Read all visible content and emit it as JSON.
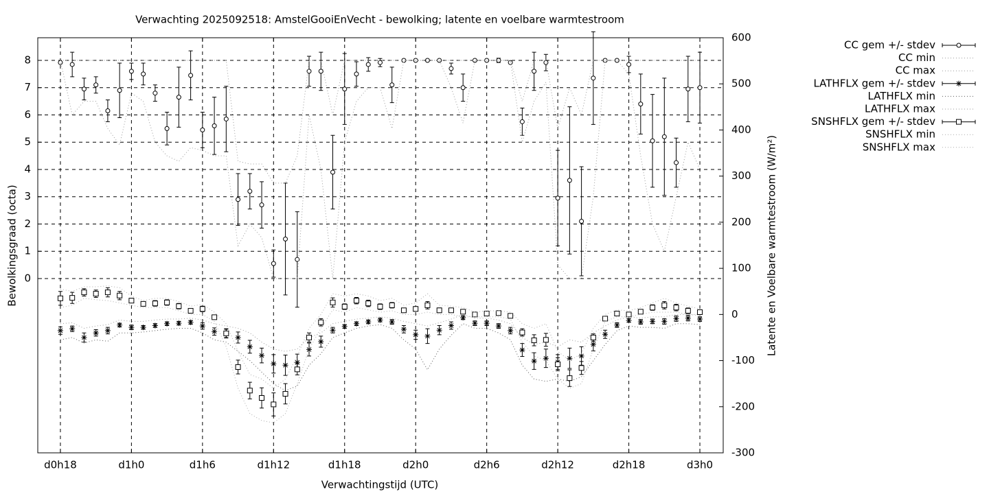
{
  "chart_data": {
    "type": "errorbar",
    "title": "Verwachting 2025092518: AmstelGooiEnVecht - bewolking; latente en voelbare warmtestroom",
    "xlabel": "Verwachtingstijd (UTC)",
    "ylabel": "Bewolkingsgraad (octa)",
    "y2label": "Latente en Voelbare warmtestroom (W/m²)",
    "grid": true,
    "legend": "right",
    "xlim": [
      16.09,
      73.97
    ],
    "xticks": [
      {
        "value": 18,
        "label": "d0h18"
      },
      {
        "value": 24,
        "label": "d1h0"
      },
      {
        "value": 30,
        "label": "d1h6"
      },
      {
        "value": 36,
        "label": "d1h12"
      },
      {
        "value": 42,
        "label": "d1h18"
      },
      {
        "value": 48,
        "label": "d2h0"
      },
      {
        "value": 54,
        "label": "d2h6"
      },
      {
        "value": 60,
        "label": "d2h12"
      },
      {
        "value": 66,
        "label": "d2h18"
      },
      {
        "value": 72,
        "label": "d3h0"
      }
    ],
    "ylim": [
      -6.39,
      8.83
    ],
    "yticks": [
      0,
      1,
      2,
      3,
      4,
      5,
      6,
      7,
      8
    ],
    "y2lim": [
      -300,
      600
    ],
    "y2ticks": [
      -300,
      -200,
      -100,
      0,
      100,
      200,
      300,
      400,
      500,
      600
    ],
    "x": [
      18,
      19,
      20,
      21,
      22,
      23,
      24,
      25,
      26,
      27,
      28,
      29,
      30,
      31,
      32,
      33,
      34,
      35,
      36,
      37,
      38,
      39,
      40,
      41,
      42,
      43,
      44,
      45,
      46,
      47,
      48,
      49,
      50,
      51,
      52,
      53,
      54,
      55,
      56,
      57,
      58,
      59,
      60,
      61,
      62,
      63,
      64,
      65,
      66,
      67,
      68,
      69,
      70,
      71,
      72
    ],
    "series": [
      {
        "name": "CC gem +/- stdev",
        "color": "#000000",
        "style": "errorbar",
        "marker": "circle",
        "values": [
          7.92,
          7.85,
          6.95,
          7.1,
          6.15,
          6.9,
          7.6,
          7.5,
          6.8,
          5.5,
          6.65,
          7.45,
          5.45,
          5.6,
          5.85,
          2.9,
          3.2,
          2.7,
          0.55,
          1.45,
          0.7,
          7.6,
          7.6,
          3.9,
          6.95,
          7.5,
          7.85,
          7.92,
          7.1,
          8,
          8,
          8,
          8,
          7.7,
          7,
          8,
          8,
          8,
          7.92,
          5.75,
          7.6,
          7.92,
          2.95,
          3.6,
          2.1,
          7.35,
          8,
          8,
          7.85,
          6.4,
          5.05,
          5.2,
          4.25,
          6.95,
          7
        ],
        "stdev": [
          0,
          0.45,
          0.4,
          0.3,
          0.4,
          1,
          0.3,
          0.4,
          0.3,
          0.6,
          1.1,
          0.9,
          0.65,
          1.05,
          1.2,
          0.95,
          0.65,
          0.85,
          0.5,
          2.05,
          1.75,
          0.55,
          0.7,
          1.35,
          1.3,
          0.45,
          0.25,
          0.15,
          0.65,
          0,
          0,
          0,
          0,
          0.2,
          0.5,
          0,
          0,
          0.08,
          0,
          0.5,
          0.7,
          0.3,
          1.75,
          2.7,
          2,
          1.7,
          0,
          0,
          0.3,
          1.1,
          1.7,
          2.15,
          0.9,
          1.2,
          1.3
        ]
      },
      {
        "name": "CC min",
        "color": "#999999",
        "style": "dotted",
        "values": [
          8,
          6,
          6.5,
          6.5,
          5.5,
          4.9,
          6.8,
          6.5,
          5,
          4.5,
          4.3,
          4.8,
          4.7,
          4.5,
          4.5,
          1.2,
          2,
          1.5,
          0,
          0,
          0,
          6,
          4,
          0,
          5,
          6.5,
          7,
          7,
          5.5,
          8,
          8,
          8,
          8,
          7,
          5.7,
          8,
          8,
          8,
          8,
          5,
          6.5,
          7.2,
          0.5,
          0,
          0,
          3,
          8,
          8,
          7.5,
          4.5,
          2,
          1,
          3,
          5,
          4
        ]
      },
      {
        "name": "CC max",
        "color": "#999999",
        "style": "dotted",
        "values": [
          8,
          8,
          8,
          8,
          8,
          8,
          8,
          8,
          8,
          8,
          8,
          8,
          8,
          8,
          8,
          4.3,
          4.2,
          4.2,
          3.5,
          3.5,
          4.5,
          8,
          8,
          6,
          8,
          8,
          8,
          8,
          8,
          8,
          8,
          8,
          8,
          8,
          8,
          8,
          8,
          8,
          8,
          6.5,
          8,
          8,
          5.5,
          7,
          6,
          8,
          8,
          8,
          8,
          8,
          8,
          8,
          8,
          8,
          8
        ]
      },
      {
        "name": "LATHFLX gem +/- stdev",
        "color": "#000000",
        "style": "errorbar",
        "marker": "asterisk",
        "axis": "y2",
        "values": [
          -35,
          -31,
          -50,
          -40,
          -35,
          -23,
          -28,
          -28,
          -24,
          -20,
          -19,
          -17,
          -25,
          -37,
          -41,
          -50,
          -70,
          -89,
          -107,
          -110,
          -104,
          -76,
          -59,
          -34,
          -26,
          -20,
          -16,
          -12,
          -16,
          -32,
          -44,
          -47,
          -34,
          -24,
          -7,
          -19,
          -19,
          -25,
          -35,
          -77,
          -101,
          -95,
          -103,
          -95,
          -90,
          -65,
          -43,
          -23,
          -13,
          -16,
          -15,
          -15,
          -9,
          -8,
          -10
        ],
        "stdev": [
          8,
          6,
          10,
          7,
          7,
          4,
          5,
          4,
          4,
          4,
          4,
          4,
          7,
          8,
          9,
          12,
          14,
          16,
          20,
          22,
          18,
          14,
          12,
          6,
          4,
          4,
          4,
          4,
          5,
          8,
          10,
          16,
          10,
          8,
          4,
          5,
          5,
          5,
          7,
          14,
          18,
          20,
          16,
          22,
          20,
          14,
          9,
          5,
          4,
          5,
          5,
          6,
          6,
          6,
          5
        ]
      },
      {
        "name": "LATHFLX min",
        "color": "#555555",
        "style": "dotted",
        "axis": "y2",
        "values": [
          -55,
          -50,
          -62,
          -55,
          -58,
          -40,
          -40,
          -38,
          -35,
          -32,
          -30,
          -30,
          -40,
          -55,
          -60,
          -80,
          -100,
          -125,
          -150,
          -165,
          -155,
          -110,
          -85,
          -50,
          -40,
          -30,
          -25,
          -22,
          -30,
          -55,
          -75,
          -120,
          -75,
          -45,
          -20,
          -30,
          -30,
          -40,
          -55,
          -110,
          -140,
          -145,
          -140,
          -145,
          -135,
          -100,
          -65,
          -35,
          -25,
          -28,
          -28,
          -30,
          -20,
          -20,
          -22
        ]
      },
      {
        "name": "LATHFLX max",
        "color": "#999999",
        "style": "dotted",
        "axis": "y2",
        "values": [
          -20,
          -18,
          -30,
          -25,
          -22,
          -12,
          -15,
          -15,
          -12,
          -10,
          -10,
          -8,
          -12,
          -20,
          -25,
          -30,
          -40,
          -60,
          -75,
          -80,
          -75,
          -50,
          -40,
          -20,
          -15,
          -10,
          -8,
          -5,
          -8,
          -15,
          -20,
          -25,
          -18,
          -10,
          0,
          -8,
          -8,
          -12,
          -20,
          -50,
          -65,
          -60,
          -70,
          -55,
          -60,
          -40,
          -25,
          -12,
          -5,
          -8,
          -5,
          -5,
          0,
          0,
          0
        ]
      },
      {
        "name": "SNSHFLX gem +/- stdev",
        "color": "#000000",
        "style": "errorbar",
        "marker": "square",
        "axis": "y2",
        "values": [
          35,
          36,
          48,
          45,
          48,
          41,
          30,
          23,
          24,
          26,
          18,
          8,
          12,
          -6,
          -41,
          -114,
          -165,
          -181,
          -195,
          -172,
          -119,
          -50,
          -17,
          26,
          17,
          30,
          24,
          17,
          20,
          9,
          12,
          20,
          9,
          9,
          6,
          0,
          2,
          3,
          -3,
          -39,
          -56,
          -55,
          -108,
          -138,
          -116,
          -50,
          -9,
          2,
          0,
          6,
          15,
          20,
          15,
          8,
          5
        ],
        "stdev": [
          15,
          12,
          8,
          8,
          10,
          9,
          5,
          5,
          6,
          6,
          6,
          5,
          6,
          4,
          10,
          15,
          18,
          22,
          25,
          22,
          12,
          10,
          8,
          10,
          6,
          7,
          7,
          6,
          6,
          4,
          5,
          8,
          5,
          4,
          4,
          3,
          3,
          3,
          3,
          8,
          12,
          14,
          14,
          18,
          14,
          8,
          3,
          2,
          4,
          4,
          6,
          8,
          7,
          6,
          5
        ]
      },
      {
        "name": "SNSHFLX min",
        "color": "#aaaaaa",
        "style": "dotted",
        "axis": "y2",
        "values": [
          15,
          20,
          35,
          32,
          30,
          25,
          20,
          15,
          15,
          15,
          8,
          0,
          0,
          -15,
          -70,
          -160,
          -215,
          -230,
          -235,
          -215,
          -150,
          -75,
          -30,
          10,
          5,
          15,
          10,
          5,
          8,
          0,
          0,
          5,
          0,
          0,
          -5,
          -5,
          -5,
          -5,
          -10,
          -60,
          -90,
          -100,
          -140,
          -160,
          -150,
          -75,
          -15,
          -5,
          -5,
          0,
          5,
          5,
          5,
          0,
          -2
        ]
      },
      {
        "name": "SNSHFLX max",
        "color": "#aaaaaa",
        "style": "dotted",
        "axis": "y2",
        "values": [
          55,
          50,
          60,
          60,
          62,
          58,
          40,
          30,
          35,
          35,
          28,
          18,
          22,
          5,
          -20,
          -80,
          -130,
          -140,
          -160,
          -140,
          -90,
          -30,
          0,
          45,
          40,
          45,
          40,
          30,
          35,
          20,
          25,
          45,
          20,
          18,
          15,
          5,
          8,
          8,
          5,
          -20,
          -30,
          -20,
          -80,
          -100,
          -85,
          -30,
          0,
          10,
          8,
          15,
          25,
          35,
          25,
          18,
          12
        ]
      }
    ]
  }
}
